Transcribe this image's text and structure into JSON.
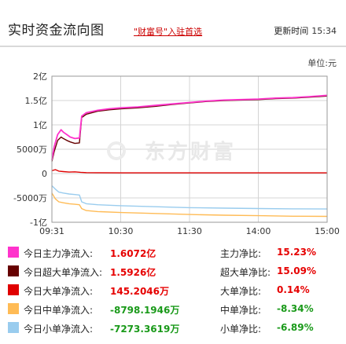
{
  "header": {
    "title": "实时资金流向图",
    "promo": "\"财富号\"入驻首选",
    "update_label": "更新时间",
    "update_time": "15:34"
  },
  "unit_label": "单位:元",
  "watermark": "东方财富",
  "colors": {
    "main": "#ff33cc",
    "super": "#660000",
    "large": "#e00000",
    "medium": "#ffbb55",
    "small": "#99ccee",
    "up": "#e60000",
    "down": "#1a9a1a"
  },
  "chart_data": {
    "type": "line",
    "x_ticks": [
      "09:31",
      "10:30",
      "11:30",
      "14:00",
      "15:00"
    ],
    "y_ticks": [
      "2亿",
      "1.5亿",
      "1亿",
      "5000万",
      "0",
      "-5000万",
      "-1亿"
    ],
    "ylim": [
      -100000000,
      200000000
    ],
    "x_range": [
      0,
      240
    ],
    "series": [
      {
        "name": "今日主力净流入",
        "key": "main",
        "x": [
          0,
          2,
          5,
          8,
          10,
          13,
          16,
          20,
          24,
          26,
          30,
          40,
          50,
          60,
          75,
          90,
          105,
          120,
          135,
          150,
          165,
          180,
          195,
          210,
          225,
          240
        ],
        "y": [
          28000000,
          55000000,
          80000000,
          90000000,
          85000000,
          80000000,
          75000000,
          72000000,
          73000000,
          118000000,
          125000000,
          130000000,
          133000000,
          135000000,
          137000000,
          140000000,
          143000000,
          146000000,
          149000000,
          151000000,
          152000000,
          153000000,
          155000000,
          156000000,
          158000000,
          160720000
        ]
      },
      {
        "name": "今日超大单净流入",
        "key": "super",
        "x": [
          0,
          2,
          5,
          8,
          10,
          13,
          16,
          20,
          24,
          26,
          30,
          40,
          50,
          60,
          75,
          90,
          105,
          120,
          135,
          150,
          165,
          180,
          195,
          210,
          225,
          240
        ],
        "y": [
          25000000,
          45000000,
          68000000,
          75000000,
          72000000,
          68000000,
          65000000,
          62000000,
          63000000,
          115000000,
          122000000,
          128000000,
          131000000,
          133000000,
          135000000,
          138000000,
          142000000,
          145000000,
          148000000,
          150000000,
          151000000,
          152000000,
          154000000,
          155000000,
          157000000,
          159260000
        ]
      },
      {
        "name": "今日大单净流入",
        "key": "large",
        "x": [
          0,
          3,
          6,
          10,
          15,
          20,
          25,
          30,
          40,
          60,
          90,
          120,
          150,
          180,
          210,
          240
        ],
        "y": [
          6000000,
          8000000,
          5000000,
          4000000,
          3000000,
          3500000,
          2500000,
          2000000,
          1800000,
          1500000,
          1450000,
          1450000,
          1450000,
          1450000,
          1450000,
          1452046
        ]
      },
      {
        "name": "今日中单净流入",
        "key": "medium",
        "x": [
          0,
          3,
          6,
          10,
          15,
          20,
          24,
          26,
          30,
          40,
          60,
          90,
          120,
          150,
          180,
          210,
          240
        ],
        "y": [
          -40000000,
          -52000000,
          -58000000,
          -60000000,
          -62000000,
          -63000000,
          -64000000,
          -72000000,
          -76000000,
          -78000000,
          -80000000,
          -82000000,
          -84000000,
          -85500000,
          -86500000,
          -87500000,
          -87981946
        ]
      },
      {
        "name": "今日小单净流入",
        "key": "small",
        "x": [
          0,
          3,
          6,
          10,
          15,
          20,
          24,
          26,
          30,
          40,
          60,
          90,
          120,
          150,
          180,
          210,
          240
        ],
        "y": [
          -25000000,
          -32000000,
          -38000000,
          -40000000,
          -42000000,
          -43000000,
          -44000000,
          -58000000,
          -62000000,
          -64000000,
          -66000000,
          -68000000,
          -70000000,
          -71000000,
          -71800000,
          -72400000,
          -72733619
        ]
      }
    ]
  },
  "legend": [
    {
      "label": "今日主力净流入:",
      "value": "1.6072亿",
      "ratio_label": "主力净比:",
      "ratio": "15.23%",
      "color_key": "main",
      "tone": "up"
    },
    {
      "label": "今日超大单净流入:",
      "value": "1.5926亿",
      "ratio_label": "超大单净比:",
      "ratio": "15.09%",
      "color_key": "super",
      "tone": "up"
    },
    {
      "label": "今日大单净流入:",
      "value": "145.2046万",
      "ratio_label": "大单净比:",
      "ratio": "0.14%",
      "color_key": "large",
      "tone": "up"
    },
    {
      "label": "今日中单净流入:",
      "value": "-8798.1946万",
      "ratio_label": "中单净比:",
      "ratio": "-8.34%",
      "color_key": "medium",
      "tone": "down"
    },
    {
      "label": "今日小单净流入:",
      "value": "-7273.3619万",
      "ratio_label": "小单净比:",
      "ratio": "-6.89%",
      "color_key": "small",
      "tone": "down"
    }
  ]
}
